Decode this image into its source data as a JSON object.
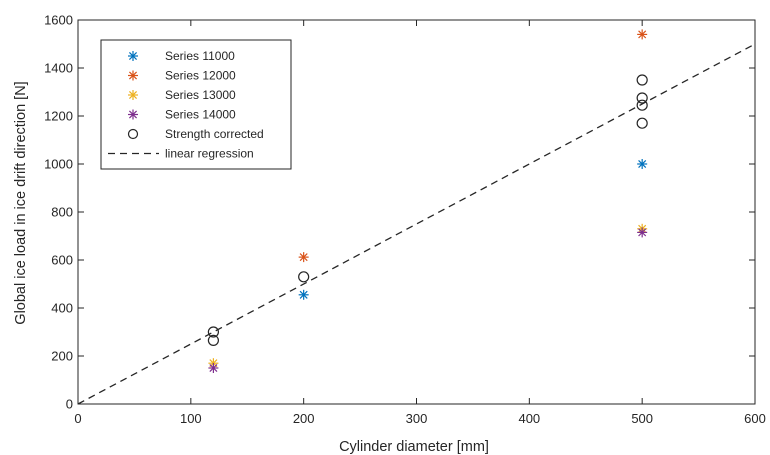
{
  "chart_data": {
    "type": "scatter",
    "xlabel": "Cylinder diameter [mm]",
    "ylabel": "Global ice load in ice drift direction [N]",
    "xlim": [
      0,
      600
    ],
    "ylim": [
      0,
      1600
    ],
    "xticks": [
      0,
      100,
      200,
      300,
      400,
      500,
      600
    ],
    "yticks": [
      0,
      200,
      400,
      600,
      800,
      1000,
      1200,
      1400,
      1600
    ],
    "grid": false,
    "legend_position": "top-left",
    "series": [
      {
        "name": "Series 11000",
        "marker": "asterisk",
        "color": "#0072BD",
        "x": [
          200,
          500
        ],
        "y": [
          455,
          1000
        ]
      },
      {
        "name": "Series 12000",
        "marker": "asterisk",
        "color": "#D95319",
        "x": [
          200,
          500
        ],
        "y": [
          612,
          1540
        ]
      },
      {
        "name": "Series 13000",
        "marker": "asterisk",
        "color": "#EDB120",
        "x": [
          120,
          500
        ],
        "y": [
          170,
          730
        ]
      },
      {
        "name": "Series 14000",
        "marker": "asterisk",
        "color": "#7E2F8E",
        "x": [
          120,
          500
        ],
        "y": [
          150,
          715
        ]
      },
      {
        "name": "Strength corrected",
        "marker": "circle",
        "color": "#262626",
        "x": [
          120,
          120,
          200,
          500,
          500,
          500,
          500
        ],
        "y": [
          300,
          265,
          530,
          1350,
          1275,
          1245,
          1170
        ]
      },
      {
        "name": "linear regression",
        "marker": "dashed-line",
        "color": "#262626",
        "x": [
          0,
          600
        ],
        "y": [
          0,
          1500
        ]
      }
    ]
  }
}
